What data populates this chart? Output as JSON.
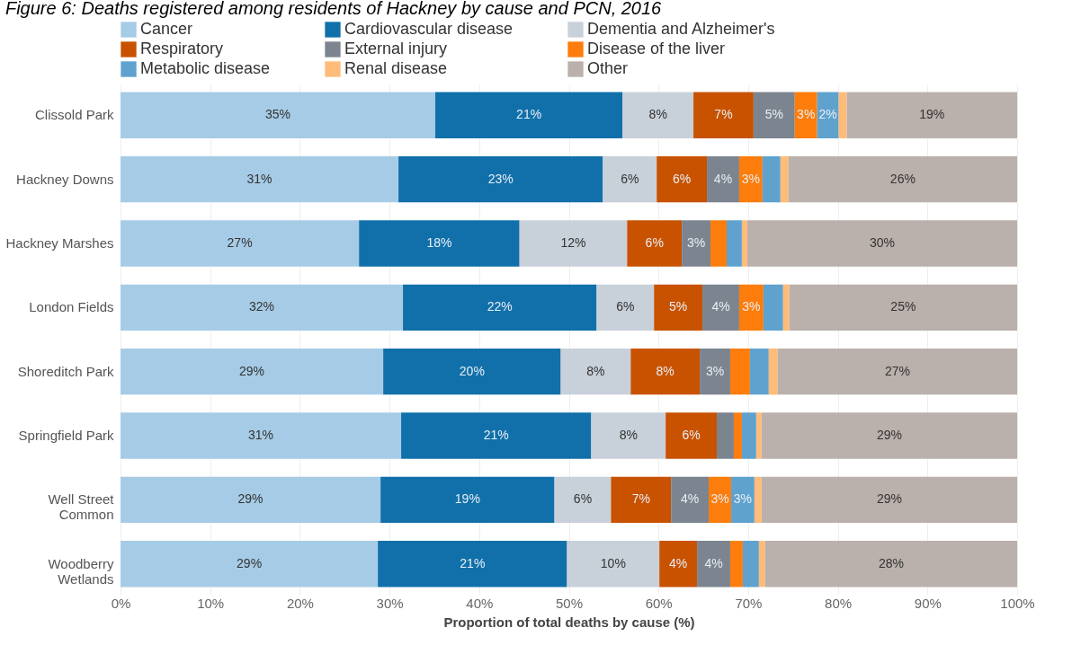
{
  "chart_data": {
    "type": "bar",
    "orientation": "horizontal",
    "stacked": true,
    "title": "Figure 6: Deaths registered among residents of Hackney by cause and PCN, 2016",
    "xlabel": "Proportion of total deaths by cause (%)",
    "categories": [
      "Clissold Park",
      "Hackney Downs",
      "Hackney Marshes",
      "London Fields",
      "Shoreditch Park",
      "Springfield Park",
      "Well Street Common",
      "Woodberry Wetlands"
    ],
    "series": [
      {
        "name": "Cancer",
        "color": "#a6cbe6",
        "values": [
          35.1,
          31,
          26.6,
          31.5,
          29.3,
          31.3,
          29,
          28.7
        ],
        "value_labels": [
          "35%",
          "31%",
          "27%",
          "32%",
          "29%",
          "31%",
          "29%",
          "29%"
        ]
      },
      {
        "name": "Cardiovascular disease",
        "color": "#1170aa",
        "values": [
          20.9,
          22.8,
          17.9,
          21.6,
          19.8,
          21.2,
          19.4,
          21.1
        ],
        "value_labels": [
          "21%",
          "23%",
          "18%",
          "22%",
          "20%",
          "21%",
          "19%",
          "21%"
        ]
      },
      {
        "name": "Dementia and Alzheimer's",
        "color": "#c8d0d9",
        "values": [
          7.9,
          6,
          12,
          6.4,
          7.8,
          8.3,
          6.3,
          10.3
        ],
        "value_labels": [
          "8%",
          "6%",
          "12%",
          "6%",
          "8%",
          "8%",
          "6%",
          "10%"
        ]
      },
      {
        "name": "Respiratory",
        "color": "#c85200",
        "values": [
          6.7,
          5.6,
          6.1,
          5.4,
          7.7,
          5.7,
          6.7,
          4.2
        ],
        "value_labels": [
          "7%",
          "6%",
          "6%",
          "5%",
          "8%",
          "6%",
          "7%",
          "4%"
        ]
      },
      {
        "name": "External injury",
        "color": "#7b848f",
        "values": [
          4.6,
          3.6,
          3.2,
          4.1,
          3.4,
          1.9,
          4.2,
          3.7
        ],
        "value_labels": [
          "5%",
          "4%",
          "3%",
          "4%",
          "3%",
          null,
          "4%",
          "4%"
        ]
      },
      {
        "name": "Disease of the liver",
        "color": "#fc7d0b",
        "values": [
          2.5,
          2.6,
          1.8,
          2.7,
          2.2,
          0.9,
          2.5,
          1.4
        ],
        "value_labels": [
          "3%",
          "3%",
          null,
          "3%",
          null,
          null,
          "3%",
          null
        ]
      },
      {
        "name": "Metabolic disease",
        "color": "#5fa2ce",
        "values": [
          2.4,
          2,
          1.7,
          2.2,
          2.1,
          1.6,
          2.6,
          1.8
        ],
        "value_labels": [
          "2%",
          null,
          null,
          null,
          null,
          null,
          "3%",
          null
        ]
      },
      {
        "name": "Renal disease",
        "color": "#ffbc79",
        "values": [
          0.9,
          0.9,
          0.6,
          0.7,
          1,
          0.6,
          0.8,
          0.7
        ],
        "value_labels": [
          null,
          null,
          null,
          null,
          null,
          null,
          null,
          null
        ]
      },
      {
        "name": "Other",
        "color": "#bab0ac",
        "values": [
          19,
          25.5,
          30.1,
          25.4,
          26.7,
          28.5,
          28.5,
          28.1
        ],
        "value_labels": [
          "19%",
          "26%",
          "30%",
          "25%",
          "27%",
          "29%",
          "29%",
          "28%"
        ]
      }
    ],
    "xlim": [
      0,
      100
    ],
    "xticks": [
      {
        "value": 0,
        "label": "0%"
      },
      {
        "value": 10,
        "label": "10%"
      },
      {
        "value": 20,
        "label": "20%"
      },
      {
        "value": 30,
        "label": "30%"
      },
      {
        "value": 40,
        "label": "40%"
      },
      {
        "value": 50,
        "label": "50%"
      },
      {
        "value": 60,
        "label": "60%"
      },
      {
        "value": 70,
        "label": "70%"
      },
      {
        "value": 80,
        "label": "80%"
      },
      {
        "value": 90,
        "label": "90%"
      },
      {
        "value": 100,
        "label": "100%"
      }
    ],
    "grid": "x",
    "legend": "top"
  }
}
